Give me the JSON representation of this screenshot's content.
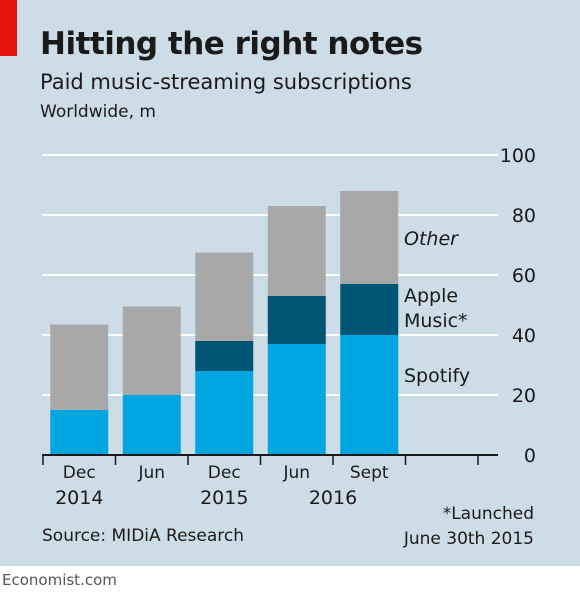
{
  "header": {
    "title": "Hitting the right notes",
    "subtitle": "Paid music-streaming subscriptions",
    "units": "Worldwide, m"
  },
  "footer": {
    "source": "Source: MIDiA Research",
    "footnote_line1": "*Launched",
    "footnote_line2": "June 30th 2015",
    "brand": "Economist.com"
  },
  "colors": {
    "background": "#cddde7",
    "spotify": "#00a6e0",
    "apple_music": "#005575",
    "other": "#a8a8a8",
    "accent_red": "#e3120b"
  },
  "chart_data": {
    "type": "bar",
    "stacked": true,
    "categories": [
      "Dec 2014",
      "Jun 2015",
      "Dec 2015",
      "Jun 2016",
      "Sept 2016"
    ],
    "x_tick_labels": [
      "Dec",
      "Jun",
      "Dec",
      "Jun",
      "Sept"
    ],
    "x_year_labels": [
      {
        "label": "2014",
        "category_index": 0
      },
      {
        "label": "2015",
        "category_index": 2
      },
      {
        "label": "2016",
        "category_index": 3.5
      }
    ],
    "series": [
      {
        "name": "Spotify",
        "values": [
          15,
          20,
          28,
          37,
          40
        ],
        "color": "#00a6e0"
      },
      {
        "name": "Apple Music*",
        "values": [
          0,
          0,
          10,
          16,
          17
        ],
        "color": "#005575"
      },
      {
        "name": "Other",
        "values": [
          28.5,
          29.5,
          29.5,
          30,
          31
        ],
        "color": "#a8a8a8"
      }
    ],
    "legend": [
      {
        "lines": [
          "Other"
        ],
        "italic": true
      },
      {
        "lines": [
          "Apple",
          "Music*"
        ],
        "italic": false
      },
      {
        "lines": [
          "Spotify"
        ],
        "italic": false
      }
    ],
    "ylim": [
      0,
      100
    ],
    "yticks": [
      0,
      20,
      40,
      60,
      80,
      100
    ],
    "y_axis_position": "right",
    "grid": true,
    "legend_placement": "right, inline"
  }
}
